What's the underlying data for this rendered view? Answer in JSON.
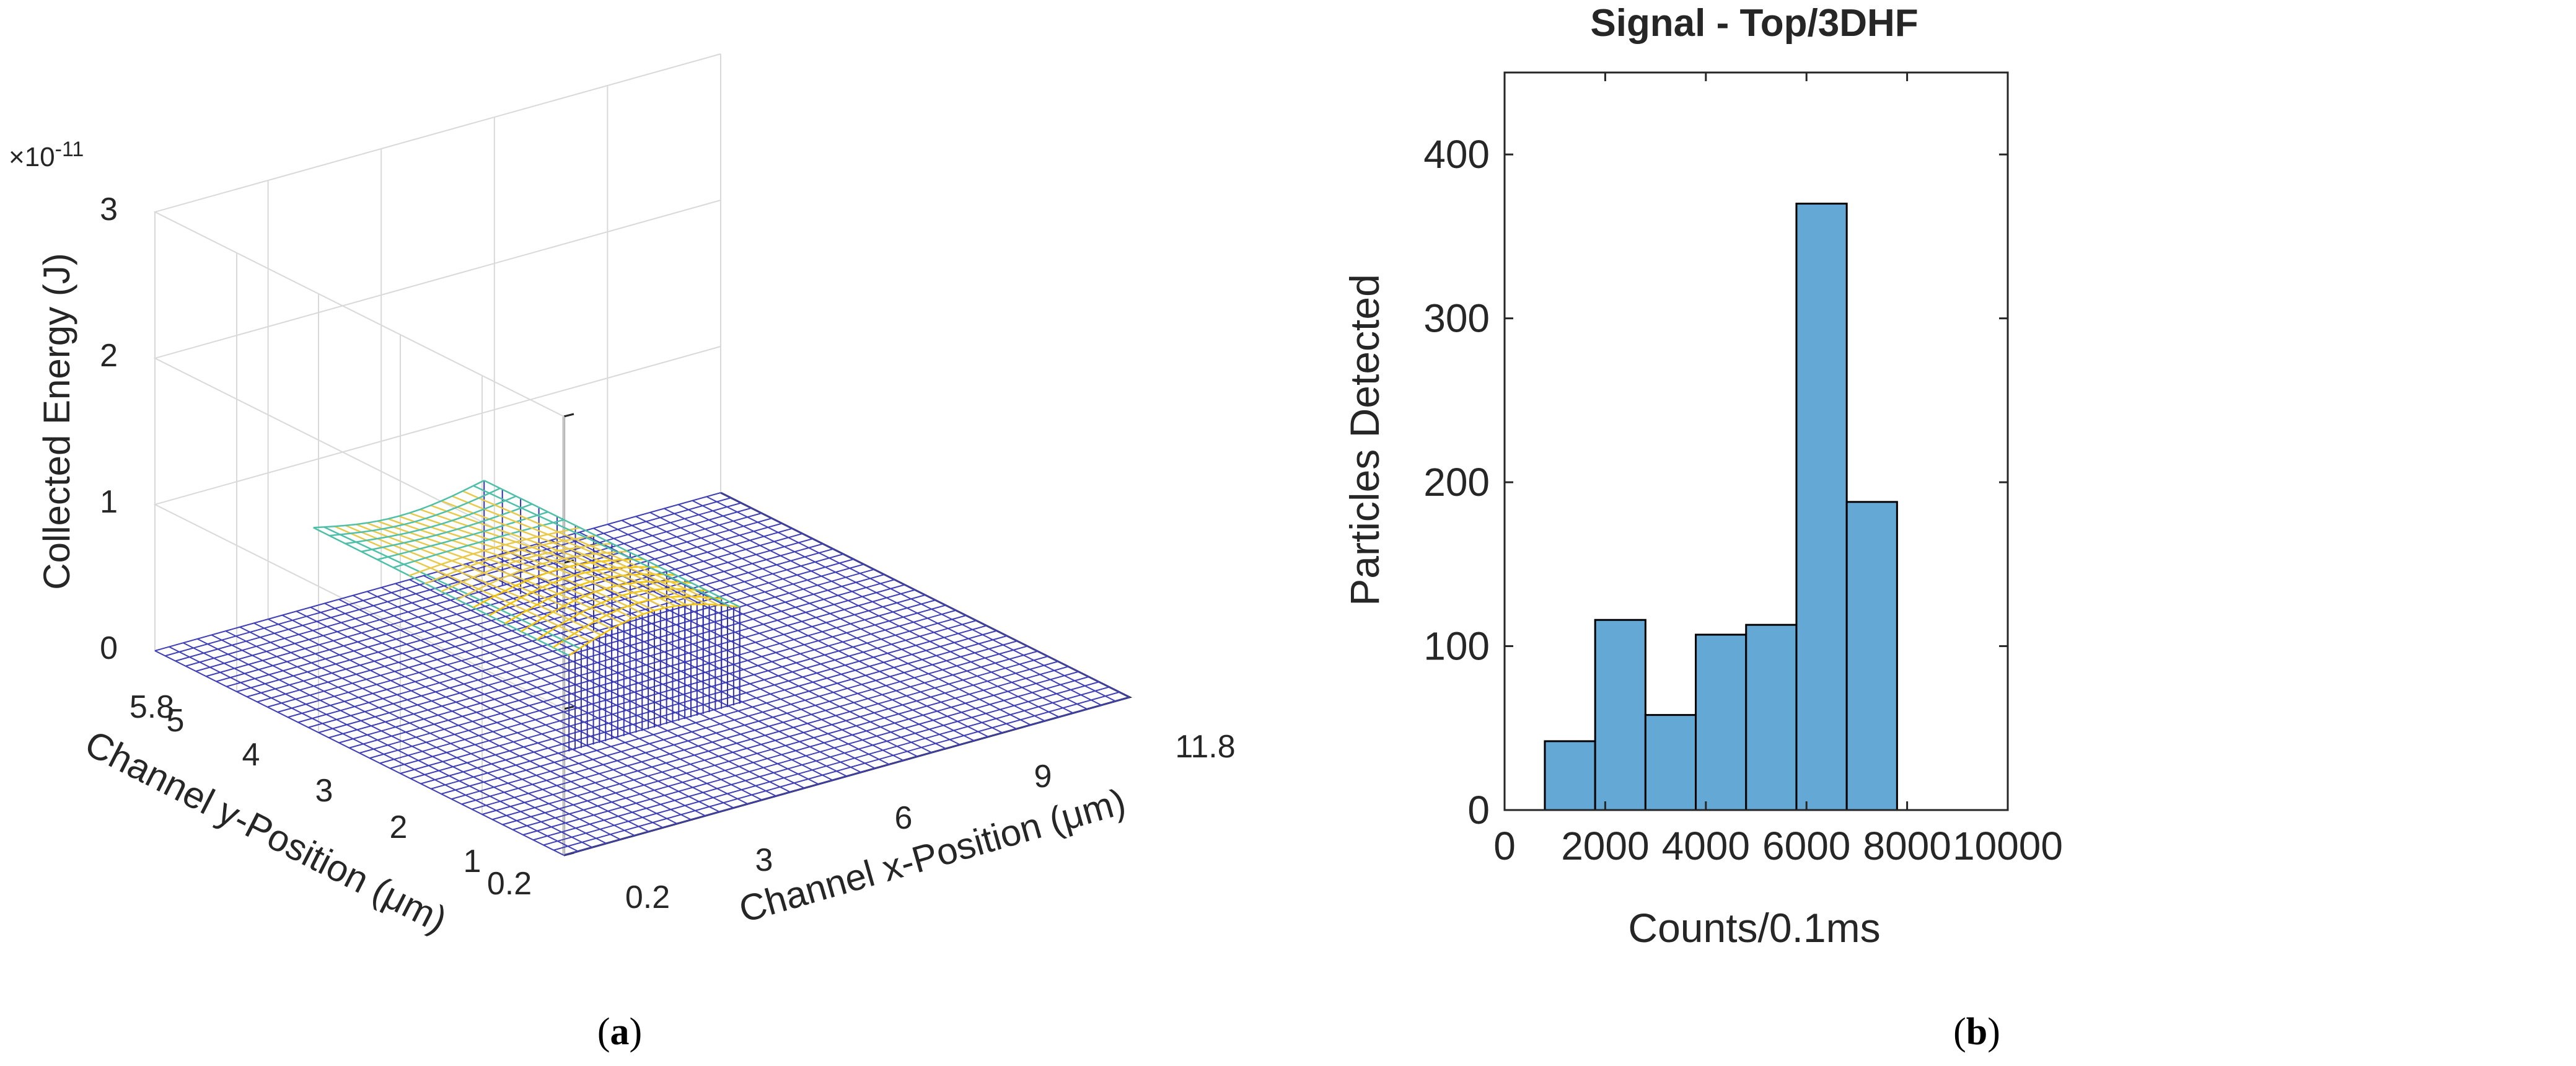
{
  "chart_data": [
    {
      "panel": "a",
      "type": "surface",
      "title": "",
      "zlabel": "Collected Energy (J)",
      "ylabel": "Channel y-Position (μm)",
      "xlabel": "Channel x-Position (μm)",
      "exponent_label": "×10",
      "exponent_power": "-11",
      "zticks": [
        "0",
        "1",
        "2",
        "3"
      ],
      "yticks": [
        "5.8",
        "5",
        "4",
        "3",
        "2",
        "1",
        "0.2"
      ],
      "xticks": [
        "0.2",
        "3",
        "6",
        "9",
        "11.8"
      ],
      "zlim": [
        0,
        3
      ],
      "xlim": [
        0.2,
        11.8
      ],
      "ylim": [
        0.2,
        5.8
      ],
      "plateau_region": {
        "x": [
          3,
          6.5
        ],
        "y": [
          2,
          5.5
        ]
      },
      "peak_energy_approx": 0.8
    },
    {
      "panel": "b",
      "type": "histogram",
      "title": "Signal - Top/3DHF",
      "xlabel": "Counts/0.1ms",
      "ylabel": "Particles Detected",
      "xlim": [
        0,
        10000
      ],
      "ylim": [
        0,
        450
      ],
      "xticks": [
        "0",
        "2000",
        "4000",
        "6000",
        "8000",
        "10000"
      ],
      "yticks": [
        "0",
        "100",
        "200",
        "300",
        "400"
      ],
      "bin_edges": [
        800,
        1800,
        2800,
        3800,
        4800,
        5800,
        6800,
        7800
      ],
      "values": [
        42,
        116,
        58,
        107,
        113,
        370,
        188
      ],
      "bar_color": "#64a8d6"
    }
  ],
  "captions": {
    "a": "a",
    "b": "b"
  }
}
